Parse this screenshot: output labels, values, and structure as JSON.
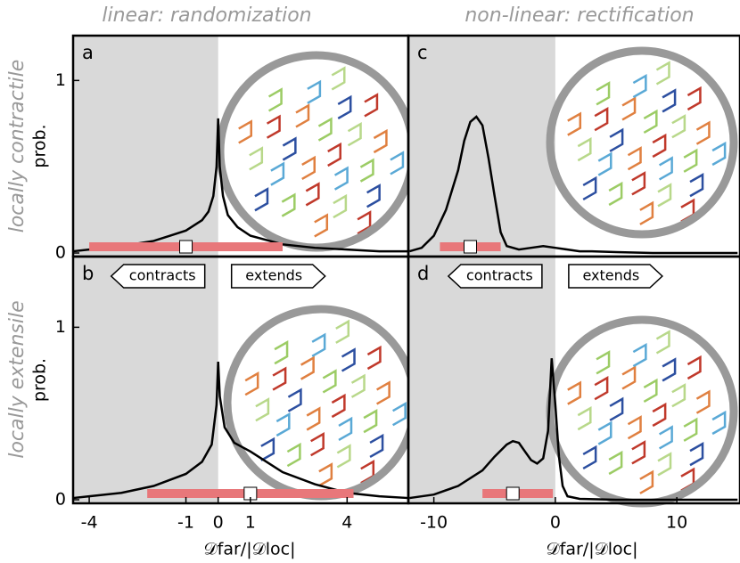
{
  "column_titles": [
    "linear: randomization",
    "non-linear: rectification"
  ],
  "row_labels": [
    "locally contractile",
    "locally extensile"
  ],
  "chart_data": [
    {
      "type": "line",
      "panel": "a",
      "ylabel": "prob.",
      "x": [
        -4.5,
        -4,
        -3,
        -2,
        -1.5,
        -1,
        -0.5,
        -0.3,
        -0.15,
        -0.05,
        0,
        0.05,
        0.15,
        0.3,
        0.6,
        1,
        2,
        3,
        4,
        5,
        5.9
      ],
      "values": [
        0.01,
        0.02,
        0.04,
        0.07,
        0.1,
        0.13,
        0.19,
        0.24,
        0.33,
        0.5,
        0.78,
        0.5,
        0.33,
        0.22,
        0.15,
        0.1,
        0.05,
        0.03,
        0.02,
        0.01,
        0.01
      ],
      "xlim": [
        -4.5,
        5.9
      ],
      "ylim": [
        0,
        1.26
      ],
      "yticks": [
        0,
        1
      ],
      "range": [
        -4,
        2
      ],
      "median": -1,
      "color": "#000000"
    },
    {
      "type": "line",
      "panel": "c",
      "x": [
        -12,
        -11,
        -10,
        -9,
        -8,
        -7.5,
        -7,
        -6.5,
        -6,
        -5.5,
        -5,
        -4.5,
        -4,
        -3,
        -2,
        -1,
        0,
        1,
        2,
        3,
        5,
        8,
        12,
        15
      ],
      "values": [
        0.01,
        0.03,
        0.1,
        0.25,
        0.48,
        0.65,
        0.76,
        0.79,
        0.74,
        0.55,
        0.33,
        0.12,
        0.04,
        0.02,
        0.03,
        0.04,
        0.03,
        0.02,
        0.01,
        0.01,
        0.005,
        0,
        0,
        0
      ],
      "xlim": [
        -12.1,
        15.2
      ],
      "ylim": [
        0,
        1.26
      ],
      "range": [
        -9.5,
        -4.5
      ],
      "median": -7,
      "color": "#000000"
    },
    {
      "type": "line",
      "panel": "b",
      "ylabel": "prob.",
      "xlabel": "𝒟far/|𝒟loc|",
      "x": [
        -4.5,
        -4,
        -3,
        -2,
        -1,
        -0.5,
        -0.2,
        -0.05,
        0,
        0.05,
        0.2,
        0.5,
        1,
        1.5,
        2,
        3,
        4,
        5,
        5.9
      ],
      "values": [
        0.01,
        0.02,
        0.04,
        0.08,
        0.15,
        0.22,
        0.32,
        0.55,
        0.8,
        0.6,
        0.42,
        0.33,
        0.28,
        0.22,
        0.16,
        0.09,
        0.04,
        0.02,
        0.01
      ],
      "xlim": [
        -4.5,
        5.9
      ],
      "ylim": [
        0,
        1.41
      ],
      "yticks": [
        0,
        1
      ],
      "xticks": [
        -4,
        -1,
        0,
        1,
        4
      ],
      "range": [
        -2.2,
        4.2
      ],
      "median": 1,
      "annotations": [
        "contracts",
        "extends"
      ],
      "color": "#000000"
    },
    {
      "type": "line",
      "panel": "d",
      "xlabel": "𝒟far/|𝒟loc|",
      "x": [
        -12,
        -10,
        -8,
        -6,
        -5,
        -4,
        -3.5,
        -3,
        -2.5,
        -2,
        -1.5,
        -1,
        -0.6,
        -0.3,
        0,
        0.3,
        0.6,
        1,
        2,
        5,
        15
      ],
      "values": [
        0.01,
        0.03,
        0.08,
        0.17,
        0.25,
        0.32,
        0.34,
        0.33,
        0.28,
        0.23,
        0.21,
        0.24,
        0.4,
        0.82,
        0.55,
        0.25,
        0.08,
        0.02,
        0.005,
        0,
        0
      ],
      "xlim": [
        -12.1,
        15.2
      ],
      "ylim": [
        0,
        1.41
      ],
      "xticks": [
        -10,
        0,
        10
      ],
      "range": [
        -6,
        -0.2
      ],
      "median": -3.5,
      "annotations": [
        "contracts",
        "extends"
      ],
      "color": "#000000"
    }
  ]
}
